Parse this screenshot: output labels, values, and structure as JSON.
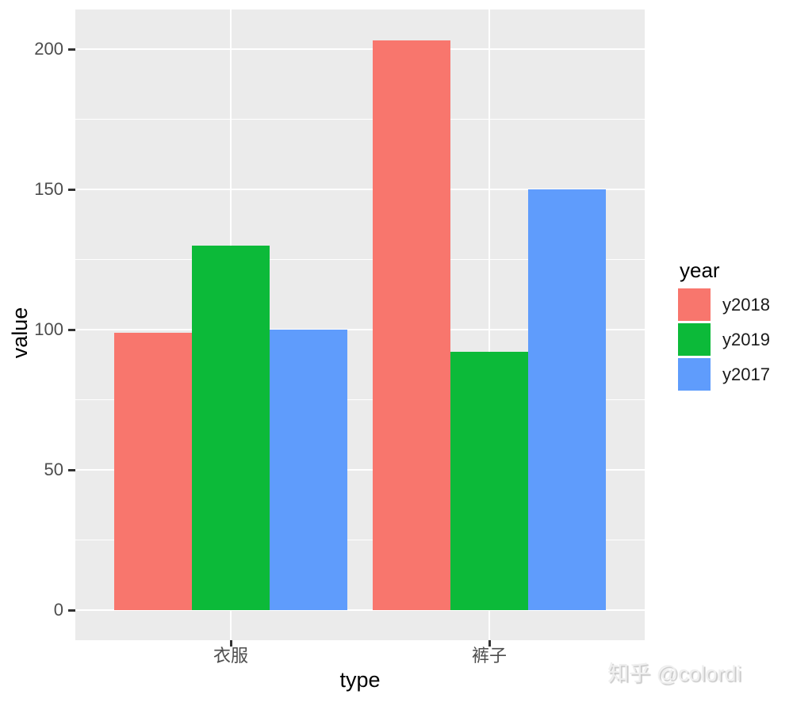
{
  "watermark": "知乎 @colordi",
  "chart_data": {
    "type": "bar",
    "style": "ggplot2-grey-theme-grouped-dodged-bars",
    "title": "",
    "xlabel": "type",
    "ylabel": "value",
    "categories": [
      "衣服",
      "裤子"
    ],
    "series": [
      {
        "name": "y2018",
        "color": "#f8766d",
        "values": [
          99,
          203
        ]
      },
      {
        "name": "y2019",
        "color": "#0cba39",
        "values": [
          130,
          92
        ]
      },
      {
        "name": "y2017",
        "color": "#5f9cfc",
        "values": [
          100,
          150
        ]
      }
    ],
    "y_ticks": [
      0,
      50,
      100,
      150,
      200
    ],
    "ylim": [
      -10,
      213
    ],
    "grid": "white major and minor horizontal lines, white vertical line at each category center, on grey panel",
    "legend": {
      "title": "year",
      "position": "right"
    },
    "colors": {
      "panel_background": "#ebebeb",
      "gridline": "#ffffff",
      "tick_mark": "#333333",
      "tick_label": "#4d4d4d",
      "axis_title": "#000000",
      "watermark_text": "#e9e9e9"
    }
  }
}
